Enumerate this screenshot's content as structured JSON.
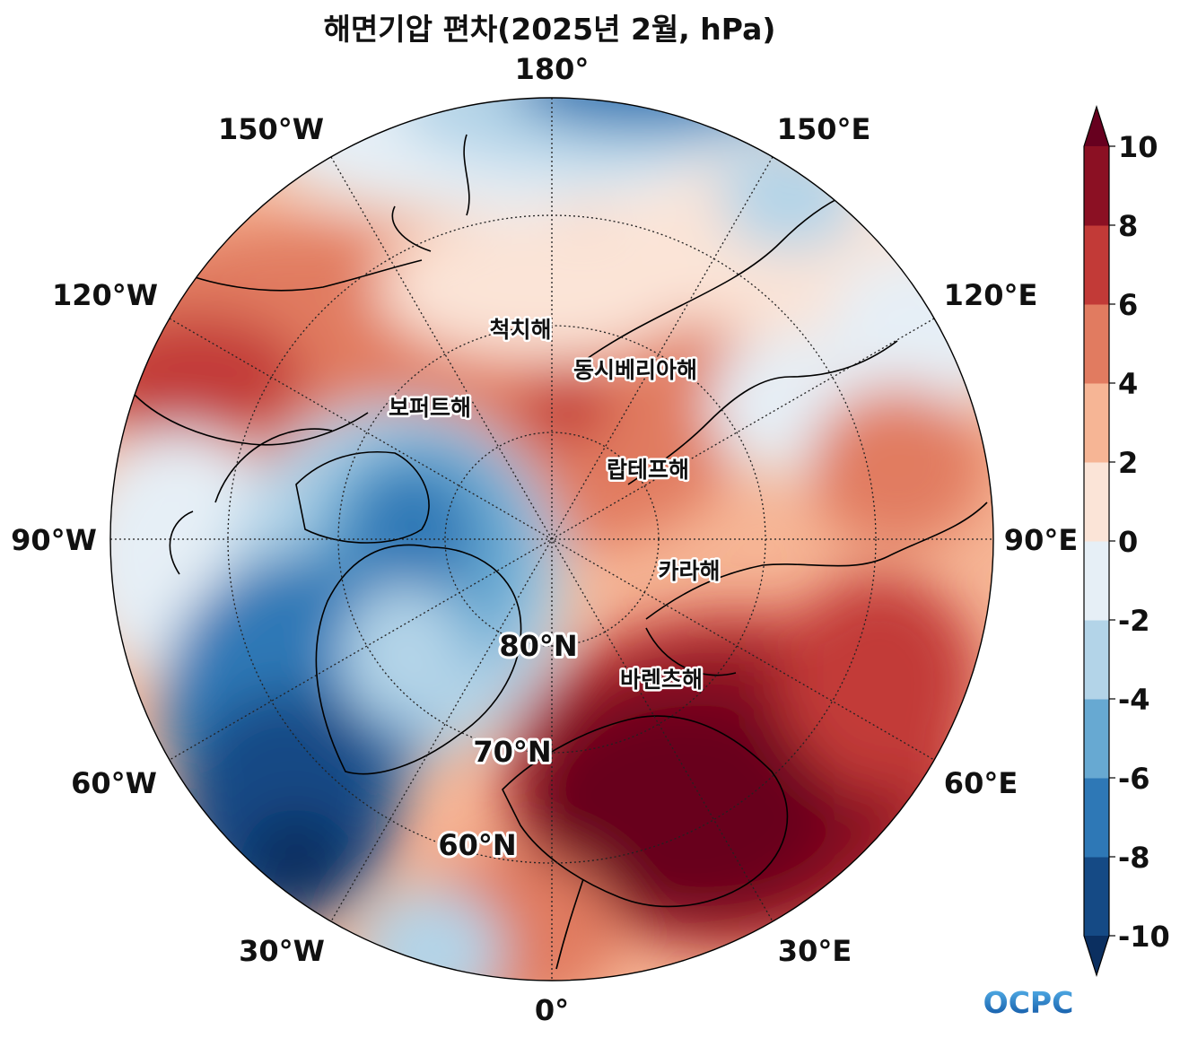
{
  "title": "해면기압 편차(2025년 2월, hPa)",
  "longitude_labels": {
    "lon_180": "180°",
    "lon_150e": "150°E",
    "lon_120e": "120°E",
    "lon_90e": "90°E",
    "lon_60e": "60°E",
    "lon_30e": "30°E",
    "lon_0": "0°",
    "lon_30w": "30°W",
    "lon_60w": "60°W",
    "lon_90w": "90°W",
    "lon_120w": "120°W",
    "lon_150w": "150°W"
  },
  "latitude_labels": {
    "lat_80": "80°N",
    "lat_70": "70°N",
    "lat_60": "60°N"
  },
  "seas": {
    "chukchi": "척치해",
    "east_siberian": "동시베리아해",
    "beaufort": "보퍼트해",
    "laptev": "랍테프해",
    "kara": "카라해",
    "barents": "바렌츠해"
  },
  "colorbar": {
    "ticks": [
      "10",
      "8",
      "6",
      "4",
      "2",
      "0",
      "-2",
      "-4",
      "-6",
      "-8",
      "-10"
    ],
    "levels": [
      -10,
      -8,
      -6,
      -4,
      -2,
      0,
      2,
      4,
      6,
      8,
      10
    ],
    "colors": [
      "#154a85",
      "#2e78b6",
      "#67a9d2",
      "#b3d4e8",
      "#e6eff6",
      "#fbe4d7",
      "#f6b595",
      "#e17b60",
      "#c23a37",
      "#8b1023"
    ],
    "under_color": "#0b2f60",
    "over_color": "#67001f",
    "extend": "both"
  },
  "logo": {
    "text": "OCPC",
    "color": "#1f7fd0"
  }
}
